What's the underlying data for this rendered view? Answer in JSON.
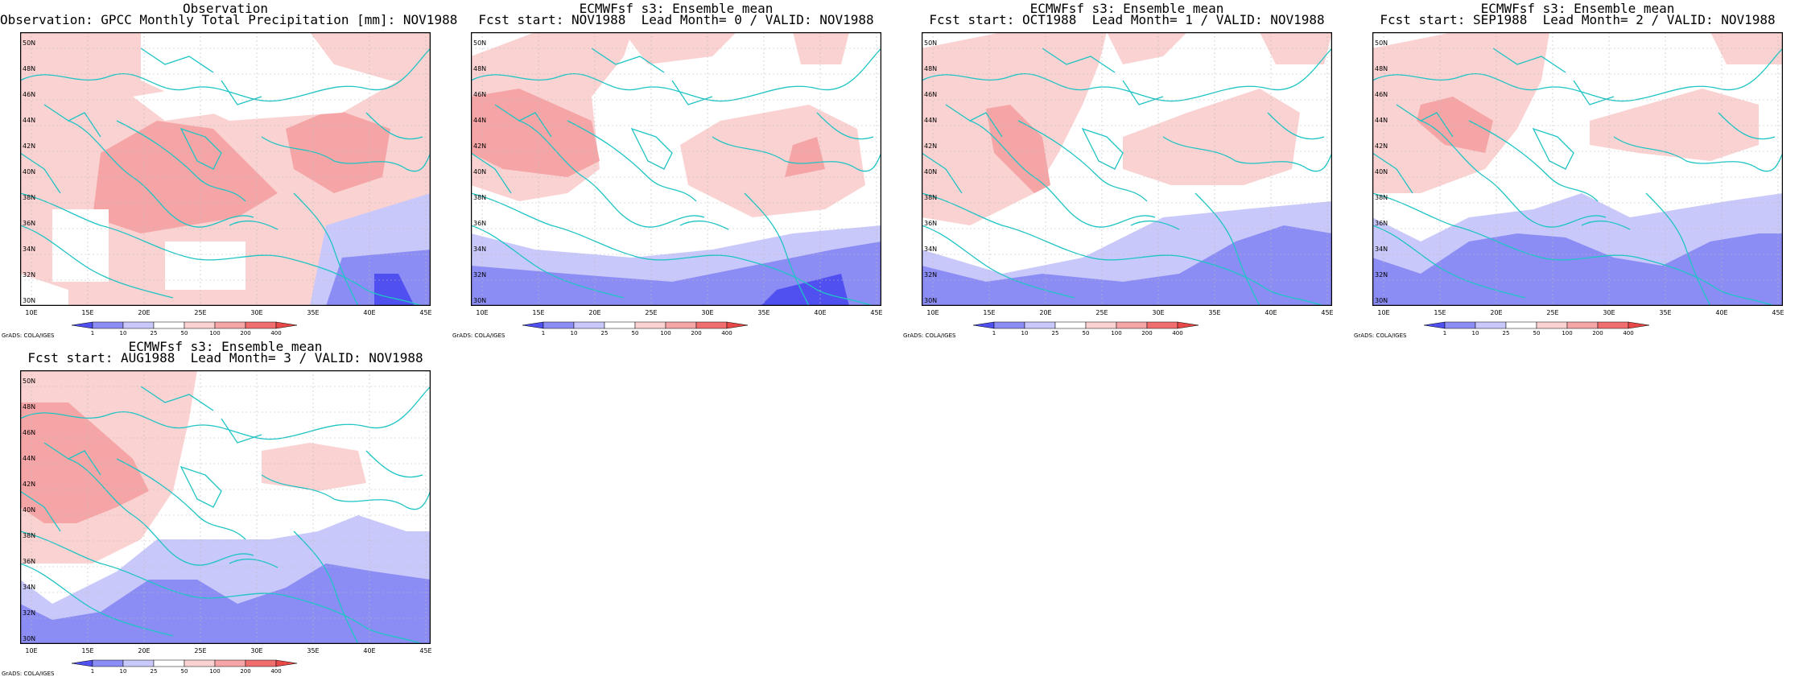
{
  "colorbar": {
    "labels": [
      "1",
      "10",
      "25",
      "50",
      "100",
      "200",
      "400"
    ],
    "colors": [
      "#5050f0",
      "#8c8cf5",
      "#c8c8fa",
      "#ffffff",
      "#fad2d2",
      "#f5a5a5",
      "#f06e6e",
      "#e84848"
    ]
  },
  "axes": {
    "lat_labels": [
      "30N",
      "32N",
      "34N",
      "36N",
      "38N",
      "40N",
      "42N",
      "44N",
      "46N",
      "48N",
      "50N"
    ],
    "lon_labels": [
      "10E",
      "15E",
      "20E",
      "25E",
      "30E",
      "35E",
      "40E",
      "45E"
    ]
  },
  "credit": "GrADS: COLA/IGES",
  "panels": [
    {
      "title1": "Observation",
      "title2": "Observation: GPCC Monthly Total Precipitation [mm]: NOV1988"
    },
    {
      "title1": "ECMWFsf s3: Ensemble mean",
      "title2": "Fcst start: NOV1988  Lead Month= 0 / VALID: NOV1988"
    },
    {
      "title1": "ECMWFsf s3: Ensemble mean",
      "title2": "Fcst start: OCT1988  Lead Month= 1 / VALID: NOV1988"
    },
    {
      "title1": "ECMWFsf s3: Ensemble mean",
      "title2": "Fcst start: SEP1988  Lead Month= 2 / VALID: NOV1988"
    },
    {
      "title1": "ECMWFsf s3: Ensemble mean",
      "title2": "Fcst start: AUG1988  Lead Month= 3 / VALID: NOV1988"
    }
  ]
}
